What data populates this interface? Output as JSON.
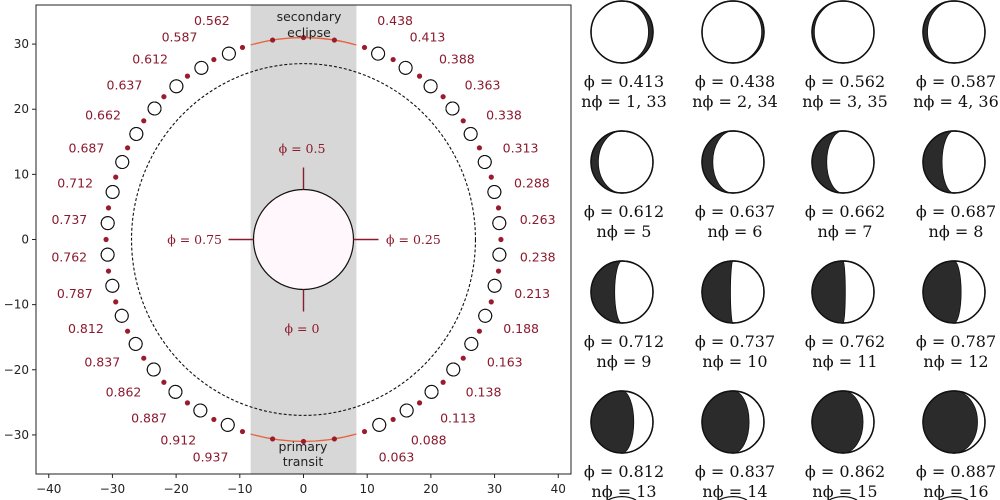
{
  "labels": {
    "secondary_eclipse_line1": "secondary",
    "secondary_eclipse_line2": "eclipse",
    "primary_transit_line1": "primary",
    "primary_transit_line2": "transit",
    "phi_05": "ϕ = 0.5",
    "phi_025": "ϕ = 0.25",
    "phi_075": "ϕ = 0.75",
    "phi_0": "ϕ = 0"
  },
  "axes": {
    "x_ticks": [
      -40,
      -30,
      -20,
      -10,
      0,
      10,
      20,
      30,
      40
    ],
    "y_ticks": [
      30,
      20,
      10,
      0,
      -10,
      -20,
      -30
    ],
    "xlim": [
      -42,
      42
    ],
    "ylim": [
      -36,
      36
    ]
  },
  "colors": {
    "orbit_dot": "#9b1b2e",
    "phase_text": "#8b1a2e",
    "eclipse_arc": "#e8623a",
    "shade_band": "#d7d7d7",
    "star_fill": "#fff7fb",
    "dark_side": "#2b2b2b"
  },
  "orbit_phases": [
    "0.063",
    "0.088",
    "0.113",
    "0.138",
    "0.163",
    "0.188",
    "0.213",
    "0.238",
    "0.263",
    "0.288",
    "0.313",
    "0.338",
    "0.363",
    "0.388",
    "0.413",
    "0.438",
    "0.562",
    "0.587",
    "0.612",
    "0.637",
    "0.662",
    "0.687",
    "0.712",
    "0.737",
    "0.762",
    "0.787",
    "0.812",
    "0.837",
    "0.862",
    "0.887",
    "0.912",
    "0.937"
  ],
  "phase_grid": [
    {
      "phi": "ϕ = 0.413",
      "n": "nϕ = 1, 33",
      "value": 0.413
    },
    {
      "phi": "ϕ = 0.438",
      "n": "nϕ = 2, 34",
      "value": 0.438
    },
    {
      "phi": "ϕ = 0.562",
      "n": "nϕ = 3, 35",
      "value": 0.562
    },
    {
      "phi": "ϕ = 0.587",
      "n": "nϕ = 4, 36",
      "value": 0.587
    },
    {
      "phi": "ϕ = 0.612",
      "n": "nϕ = 5",
      "value": 0.612
    },
    {
      "phi": "ϕ = 0.637",
      "n": "nϕ = 6",
      "value": 0.637
    },
    {
      "phi": "ϕ = 0.662",
      "n": "nϕ = 7",
      "value": 0.662
    },
    {
      "phi": "ϕ = 0.687",
      "n": "nϕ = 8",
      "value": 0.687
    },
    {
      "phi": "ϕ = 0.712",
      "n": "nϕ = 9",
      "value": 0.712
    },
    {
      "phi": "ϕ = 0.737",
      "n": "nϕ = 10",
      "value": 0.737
    },
    {
      "phi": "ϕ = 0.762",
      "n": "nϕ = 11",
      "value": 0.762
    },
    {
      "phi": "ϕ = 0.787",
      "n": "nϕ = 12",
      "value": 0.787
    },
    {
      "phi": "ϕ = 0.812",
      "n": "nϕ = 13",
      "value": 0.812
    },
    {
      "phi": "ϕ = 0.837",
      "n": "nϕ = 14",
      "value": 0.837
    },
    {
      "phi": "ϕ = 0.862",
      "n": "nϕ = 15",
      "value": 0.862
    },
    {
      "phi": "ϕ = 0.887",
      "n": "nϕ = 16",
      "value": 0.887
    }
  ]
}
